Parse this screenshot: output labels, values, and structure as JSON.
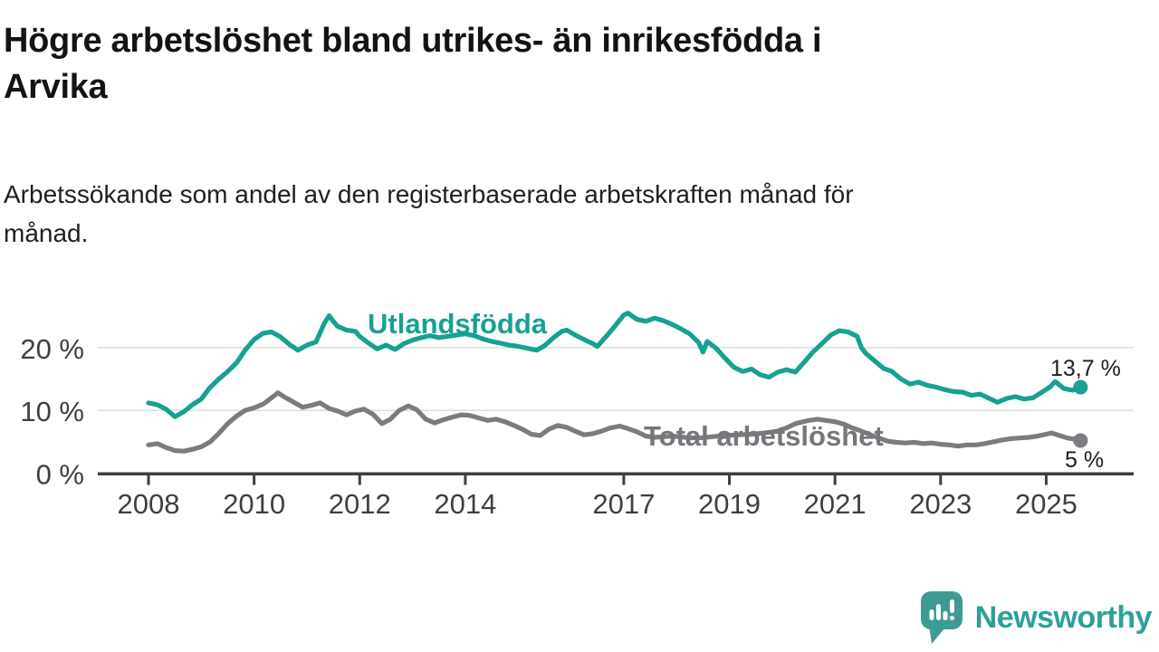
{
  "header": {
    "title_line1": "Högre arbetslöshet bland utrikes- än inrikesfödda i",
    "title_line2": "Arvika",
    "subtitle_line1": "Arbetssökande som andel av den registerbaserade arbetskraften månad för",
    "subtitle_line2": "månad."
  },
  "footer": {
    "brand": "Newsworthy"
  },
  "colors": {
    "background": "#ffffff",
    "title_text": "#131313",
    "subtitle_text": "#1f1f1f",
    "axis": "#3F3F3F",
    "tick_text": "#3F3F3F",
    "gridline": "#DBDBDB",
    "teal_series": "#16A192",
    "gray_series": "#7B7B80",
    "gray_label": "#76767B",
    "end_label_text": "#1d1d1d",
    "logo_icon": "#3E9B94",
    "logo_text": "#2CA197"
  },
  "chart_data": {
    "type": "line",
    "title": "Högre arbetslöshet bland utrikes- än inrikesfödda i Arvika",
    "subtitle": "Arbetssökande som andel av den registerbaserade arbetskraften månad för månad.",
    "xlabel": "",
    "ylabel": "",
    "grid": "horizontal-only",
    "legend_position": "inline-labels",
    "xlim": [
      2007.05,
      2026.65
    ],
    "ylim": [
      0,
      26.5
    ],
    "x_ticks": [
      {
        "year": 2008,
        "label": "2008"
      },
      {
        "year": 2010,
        "label": "2010"
      },
      {
        "year": 2012,
        "label": "2012"
      },
      {
        "year": 2014,
        "label": "2014"
      },
      {
        "year": 2017,
        "label": "2017"
      },
      {
        "year": 2019,
        "label": "2019"
      },
      {
        "year": 2021,
        "label": "2021"
      },
      {
        "year": 2023,
        "label": "2023"
      },
      {
        "year": 2025,
        "label": "2025"
      }
    ],
    "y_ticks": [
      {
        "value": 0,
        "label": "0 %"
      },
      {
        "value": 10,
        "label": "10 %"
      },
      {
        "value": 20,
        "label": "20 %"
      }
    ],
    "grid_values": [
      10,
      20
    ],
    "series": [
      {
        "name": "Utlandsfödda",
        "color": "#16A192",
        "end_label": "13,7 %",
        "end_value": 13.7,
        "points": [
          [
            2008,
            11.2
          ],
          [
            2008.17,
            10.9
          ],
          [
            2008.33,
            10.2
          ],
          [
            2008.5,
            9
          ],
          [
            2008.67,
            9.8
          ],
          [
            2008.83,
            10.9
          ],
          [
            2009,
            11.8
          ],
          [
            2009.15,
            13.5
          ],
          [
            2009.33,
            15
          ],
          [
            2009.5,
            16.2
          ],
          [
            2009.67,
            17.6
          ],
          [
            2009.83,
            19.6
          ],
          [
            2010,
            21.3
          ],
          [
            2010.17,
            22.3
          ],
          [
            2010.33,
            22.5
          ],
          [
            2010.5,
            21.7
          ],
          [
            2010.67,
            20.5
          ],
          [
            2010.83,
            19.6
          ],
          [
            2011,
            20.4
          ],
          [
            2011.17,
            20.9
          ],
          [
            2011.33,
            23.9
          ],
          [
            2011.42,
            25.1
          ],
          [
            2011.5,
            24.2
          ],
          [
            2011.58,
            23.4
          ],
          [
            2011.75,
            22.8
          ],
          [
            2011.92,
            22.6
          ],
          [
            2012,
            21.8
          ],
          [
            2012.17,
            20.7
          ],
          [
            2012.33,
            19.8
          ],
          [
            2012.5,
            20.4
          ],
          [
            2012.67,
            19.7
          ],
          [
            2012.83,
            20.6
          ],
          [
            2013,
            21.2
          ],
          [
            2013.17,
            21.6
          ],
          [
            2013.33,
            21.9
          ],
          [
            2013.5,
            21.6
          ],
          [
            2013.67,
            21.8
          ],
          [
            2013.83,
            22
          ],
          [
            2014,
            22.2
          ],
          [
            2014.17,
            21.9
          ],
          [
            2014.33,
            21.4
          ],
          [
            2014.5,
            21
          ],
          [
            2014.67,
            20.7
          ],
          [
            2014.83,
            20.4
          ],
          [
            2015,
            20.2
          ],
          [
            2015.17,
            19.9
          ],
          [
            2015.35,
            19.6
          ],
          [
            2015.5,
            20.3
          ],
          [
            2015.67,
            21.6
          ],
          [
            2015.83,
            22.6
          ],
          [
            2015.92,
            22.8
          ],
          [
            2016.08,
            22
          ],
          [
            2016.25,
            21.3
          ],
          [
            2016.42,
            20.6
          ],
          [
            2016.5,
            20.2
          ],
          [
            2016.67,
            21.8
          ],
          [
            2016.83,
            23.4
          ],
          [
            2017,
            25.2
          ],
          [
            2017.08,
            25.5
          ],
          [
            2017.25,
            24.5
          ],
          [
            2017.42,
            24.2
          ],
          [
            2017.58,
            24.7
          ],
          [
            2017.75,
            24.3
          ],
          [
            2017.92,
            23.7
          ],
          [
            2018.08,
            23
          ],
          [
            2018.25,
            22.2
          ],
          [
            2018.42,
            20.8
          ],
          [
            2018.5,
            19.3
          ],
          [
            2018.58,
            21
          ],
          [
            2018.75,
            19.9
          ],
          [
            2018.92,
            18.3
          ],
          [
            2019.08,
            16.9
          ],
          [
            2019.25,
            16.2
          ],
          [
            2019.42,
            16.6
          ],
          [
            2019.58,
            15.7
          ],
          [
            2019.75,
            15.3
          ],
          [
            2019.92,
            16.1
          ],
          [
            2020.08,
            16.5
          ],
          [
            2020.25,
            16.1
          ],
          [
            2020.42,
            17.7
          ],
          [
            2020.58,
            19.3
          ],
          [
            2020.75,
            20.6
          ],
          [
            2020.92,
            22
          ],
          [
            2021.08,
            22.7
          ],
          [
            2021.25,
            22.5
          ],
          [
            2021.42,
            21.8
          ],
          [
            2021.5,
            20
          ],
          [
            2021.58,
            19.1
          ],
          [
            2021.75,
            17.9
          ],
          [
            2021.92,
            16.7
          ],
          [
            2022.08,
            16.2
          ],
          [
            2022.25,
            15
          ],
          [
            2022.42,
            14.2
          ],
          [
            2022.58,
            14.5
          ],
          [
            2022.75,
            14
          ],
          [
            2022.92,
            13.7
          ],
          [
            2023.08,
            13.3
          ],
          [
            2023.25,
            13
          ],
          [
            2023.42,
            12.9
          ],
          [
            2023.58,
            12.4
          ],
          [
            2023.75,
            12.6
          ],
          [
            2023.92,
            11.9
          ],
          [
            2024.08,
            11.3
          ],
          [
            2024.25,
            11.9
          ],
          [
            2024.42,
            12.2
          ],
          [
            2024.58,
            11.8
          ],
          [
            2024.75,
            12
          ],
          [
            2024.92,
            12.9
          ],
          [
            2025.08,
            13.8
          ],
          [
            2025.17,
            14.6
          ],
          [
            2025.33,
            13.5
          ],
          [
            2025.5,
            13.2
          ],
          [
            2025.65,
            13.7
          ]
        ]
      },
      {
        "name": "Total arbetslöshet",
        "color": "#7B7B80",
        "end_label": "5 %",
        "end_value": 5,
        "points": [
          [
            2008,
            4.5
          ],
          [
            2008.17,
            4.7
          ],
          [
            2008.33,
            4.1
          ],
          [
            2008.5,
            3.6
          ],
          [
            2008.67,
            3.5
          ],
          [
            2008.83,
            3.8
          ],
          [
            2009,
            4.2
          ],
          [
            2009.17,
            5
          ],
          [
            2009.33,
            6.3
          ],
          [
            2009.5,
            7.9
          ],
          [
            2009.67,
            9.1
          ],
          [
            2009.83,
            10
          ],
          [
            2010,
            10.4
          ],
          [
            2010.17,
            11
          ],
          [
            2010.33,
            12
          ],
          [
            2010.45,
            12.8
          ],
          [
            2010.58,
            12.1
          ],
          [
            2010.75,
            11.3
          ],
          [
            2010.92,
            10.5
          ],
          [
            2011.08,
            10.8
          ],
          [
            2011.25,
            11.2
          ],
          [
            2011.42,
            10.3
          ],
          [
            2011.58,
            9.9
          ],
          [
            2011.75,
            9.3
          ],
          [
            2011.92,
            9.9
          ],
          [
            2012.08,
            10.2
          ],
          [
            2012.25,
            9.4
          ],
          [
            2012.42,
            7.9
          ],
          [
            2012.58,
            8.6
          ],
          [
            2012.75,
            10
          ],
          [
            2012.92,
            10.7
          ],
          [
            2013.08,
            10.1
          ],
          [
            2013.25,
            8.6
          ],
          [
            2013.42,
            8
          ],
          [
            2013.58,
            8.5
          ],
          [
            2013.75,
            8.9
          ],
          [
            2013.92,
            9.3
          ],
          [
            2014.08,
            9.2
          ],
          [
            2014.25,
            8.8
          ],
          [
            2014.42,
            8.4
          ],
          [
            2014.58,
            8.6
          ],
          [
            2014.75,
            8.2
          ],
          [
            2014.92,
            7.6
          ],
          [
            2015.08,
            7
          ],
          [
            2015.25,
            6.2
          ],
          [
            2015.42,
            6
          ],
          [
            2015.58,
            7
          ],
          [
            2015.75,
            7.6
          ],
          [
            2015.92,
            7.3
          ],
          [
            2016.08,
            6.7
          ],
          [
            2016.25,
            6.1
          ],
          [
            2016.42,
            6.3
          ],
          [
            2016.58,
            6.7
          ],
          [
            2016.75,
            7.2
          ],
          [
            2016.92,
            7.5
          ],
          [
            2017.08,
            7.1
          ],
          [
            2017.25,
            6.6
          ],
          [
            2017.42,
            5.9
          ],
          [
            2017.58,
            5.7
          ],
          [
            2017.75,
            5.8
          ],
          [
            2017.92,
            5.9
          ],
          [
            2018.17,
            5.7
          ],
          [
            2018.42,
            5.6
          ],
          [
            2018.67,
            5.8
          ],
          [
            2018.92,
            6
          ],
          [
            2019.17,
            6.1
          ],
          [
            2019.42,
            6.2
          ],
          [
            2019.67,
            6.4
          ],
          [
            2019.92,
            6.7
          ],
          [
            2020.08,
            7.2
          ],
          [
            2020.25,
            7.9
          ],
          [
            2020.5,
            8.4
          ],
          [
            2020.67,
            8.6
          ],
          [
            2020.83,
            8.4
          ],
          [
            2021,
            8.2
          ],
          [
            2021.17,
            7.8
          ],
          [
            2021.33,
            7.2
          ],
          [
            2021.5,
            6.7
          ],
          [
            2021.67,
            6.1
          ],
          [
            2021.83,
            5.6
          ],
          [
            2022,
            5.1
          ],
          [
            2022.17,
            4.9
          ],
          [
            2022.33,
            4.8
          ],
          [
            2022.5,
            4.9
          ],
          [
            2022.67,
            4.7
          ],
          [
            2022.83,
            4.8
          ],
          [
            2023,
            4.6
          ],
          [
            2023.17,
            4.5
          ],
          [
            2023.33,
            4.3
          ],
          [
            2023.5,
            4.5
          ],
          [
            2023.67,
            4.5
          ],
          [
            2023.83,
            4.7
          ],
          [
            2024,
            5
          ],
          [
            2024.17,
            5.3
          ],
          [
            2024.33,
            5.5
          ],
          [
            2024.5,
            5.6
          ],
          [
            2024.67,
            5.7
          ],
          [
            2024.83,
            5.9
          ],
          [
            2025,
            6.2
          ],
          [
            2025.1,
            6.4
          ],
          [
            2025.25,
            6
          ],
          [
            2025.4,
            5.6
          ],
          [
            2025.55,
            5.4
          ],
          [
            2025.65,
            5.2
          ]
        ]
      }
    ]
  }
}
